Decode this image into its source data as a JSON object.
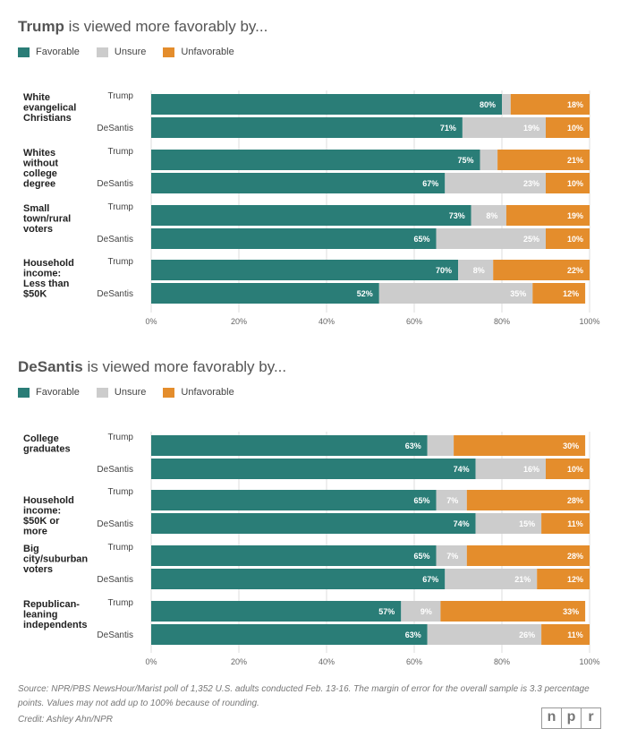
{
  "colors": {
    "favorable": "#2a7d77",
    "unsure": "#cccccc",
    "unfavorable": "#e48d2c"
  },
  "legend": {
    "favorable": "Favorable",
    "unsure": "Unsure",
    "unfavorable": "Unfavorable"
  },
  "x_ticks": [
    "0%",
    "20%",
    "40%",
    "60%",
    "80%",
    "100%"
  ],
  "chart_data": [
    {
      "type": "bar",
      "orientation": "horizontal",
      "stacked": true,
      "title_bold": "Trump",
      "title_rest": " is viewed more favorably by...",
      "xlim": [
        0,
        100
      ],
      "series_names": [
        "Favorable",
        "Unsure",
        "Unfavorable"
      ],
      "groups": [
        {
          "label": [
            "White",
            "evangelical",
            "Christians"
          ],
          "rows": [
            {
              "name": "Trump",
              "values": [
                80,
                2,
                18
              ],
              "labels": [
                "80%",
                "",
                "18%"
              ]
            },
            {
              "name": "DeSantis",
              "values": [
                71,
                19,
                10
              ],
              "labels": [
                "71%",
                "19%",
                "10%"
              ]
            }
          ]
        },
        {
          "label": [
            "Whites",
            "without",
            "college",
            "degree"
          ],
          "rows": [
            {
              "name": "Trump",
              "values": [
                75,
                4,
                21
              ],
              "labels": [
                "75%",
                "",
                "21%"
              ]
            },
            {
              "name": "DeSantis",
              "values": [
                67,
                23,
                10
              ],
              "labels": [
                "67%",
                "23%",
                "10%"
              ]
            }
          ]
        },
        {
          "label": [
            "Small",
            "town/rural",
            "voters"
          ],
          "rows": [
            {
              "name": "Trump",
              "values": [
                73,
                8,
                19
              ],
              "labels": [
                "73%",
                "8%",
                "19%"
              ]
            },
            {
              "name": "DeSantis",
              "values": [
                65,
                25,
                10
              ],
              "labels": [
                "65%",
                "25%",
                "10%"
              ]
            }
          ]
        },
        {
          "label": [
            "Household",
            "income:",
            "Less than",
            "$50K"
          ],
          "rows": [
            {
              "name": "Trump",
              "values": [
                70,
                8,
                22
              ],
              "labels": [
                "70%",
                "8%",
                "22%"
              ]
            },
            {
              "name": "DeSantis",
              "values": [
                52,
                35,
                12
              ],
              "labels": [
                "52%",
                "35%",
                "12%"
              ]
            }
          ]
        }
      ]
    },
    {
      "type": "bar",
      "orientation": "horizontal",
      "stacked": true,
      "title_bold": "DeSantis",
      "title_rest": " is viewed more favorably by...",
      "xlim": [
        0,
        100
      ],
      "series_names": [
        "Favorable",
        "Unsure",
        "Unfavorable"
      ],
      "groups": [
        {
          "label": [
            "College",
            "graduates"
          ],
          "rows": [
            {
              "name": "Trump",
              "values": [
                63,
                6,
                30
              ],
              "labels": [
                "63%",
                "",
                "30%"
              ]
            },
            {
              "name": "DeSantis",
              "values": [
                74,
                16,
                10
              ],
              "labels": [
                "74%",
                "16%",
                "10%"
              ]
            }
          ]
        },
        {
          "label": [
            "Household",
            "income:",
            "$50K or",
            "more"
          ],
          "rows": [
            {
              "name": "Trump",
              "values": [
                65,
                7,
                28
              ],
              "labels": [
                "65%",
                "7%",
                "28%"
              ]
            },
            {
              "name": "DeSantis",
              "values": [
                74,
                15,
                11
              ],
              "labels": [
                "74%",
                "15%",
                "11%"
              ]
            }
          ]
        },
        {
          "label": [
            "Big",
            "city/suburban",
            "voters"
          ],
          "rows": [
            {
              "name": "Trump",
              "values": [
                65,
                7,
                28
              ],
              "labels": [
                "65%",
                "7%",
                "28%"
              ]
            },
            {
              "name": "DeSantis",
              "values": [
                67,
                21,
                12
              ],
              "labels": [
                "67%",
                "21%",
                "12%"
              ]
            }
          ]
        },
        {
          "label": [
            "Republican-",
            "leaning",
            "independents"
          ],
          "rows": [
            {
              "name": "Trump",
              "values": [
                57,
                9,
                33
              ],
              "labels": [
                "57%",
                "9%",
                "33%"
              ]
            },
            {
              "name": "DeSantis",
              "values": [
                63,
                26,
                11
              ],
              "labels": [
                "63%",
                "26%",
                "11%"
              ]
            }
          ]
        }
      ]
    }
  ],
  "footer": {
    "source": "Source: NPR/PBS NewsHour/Marist poll of 1,352 U.S. adults conducted Feb. 13-16. The margin of error for the overall sample is 3.3 percentage points. Values may not add up to 100% because of rounding.",
    "credit": "Credit: Ashley Ahn/NPR",
    "logo_letters": [
      "n",
      "p",
      "r"
    ]
  }
}
